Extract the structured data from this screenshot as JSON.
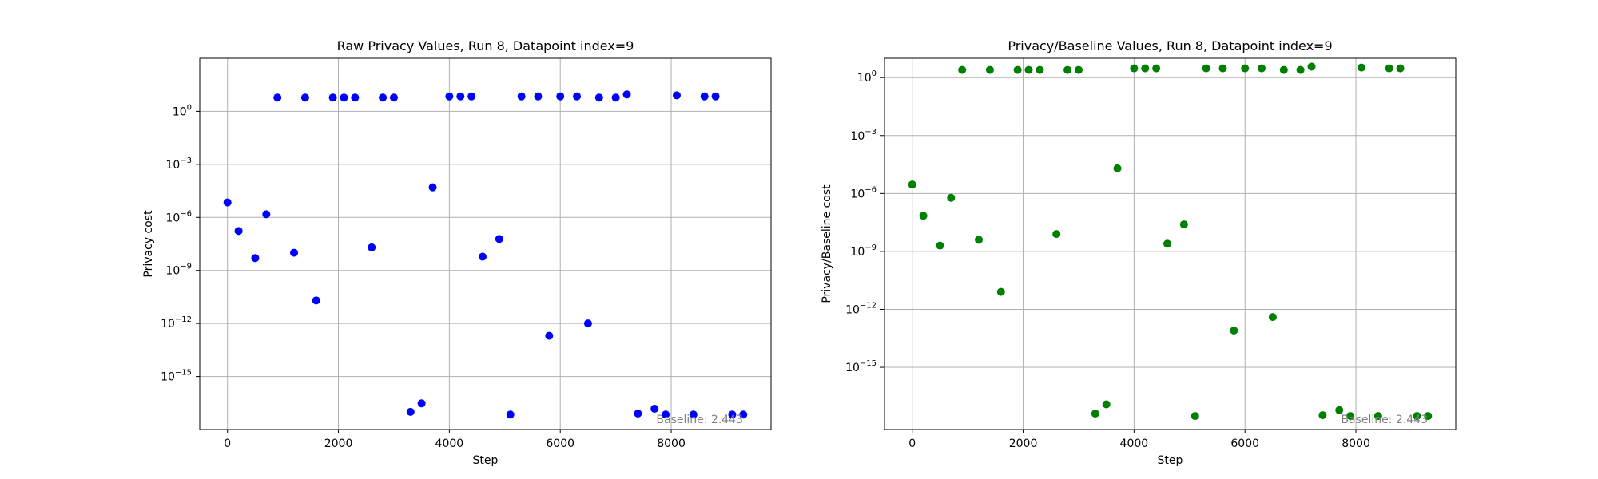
{
  "chart_data": [
    {
      "type": "scatter",
      "title": "Raw Privacy Values, Run 8, Datapoint index=9",
      "xlabel": "Step",
      "ylabel": "Privacy cost",
      "xlim": [
        -500,
        9800
      ],
      "ylim": [
        1e-18,
        1000
      ],
      "yscale": "log",
      "xticks": [
        0,
        2000,
        4000,
        6000,
        8000
      ],
      "xtick_labels": [
        "0",
        "2000",
        "4000",
        "6000",
        "8000"
      ],
      "yticks": [
        1e-15,
        1e-12,
        1e-09,
        1e-06,
        0.001,
        1
      ],
      "ytick_exponents": [
        "−15",
        "−12",
        "−9",
        "−6",
        "−3",
        "0"
      ],
      "ytick_base": "10",
      "grid": true,
      "color": "#0000ff",
      "annotation": "Baseline: 2.443",
      "x": [
        0,
        200,
        500,
        700,
        900,
        1200,
        1400,
        1600,
        1900,
        2100,
        2300,
        2600,
        2800,
        3000,
        3300,
        3500,
        3700,
        4000,
        4200,
        4400,
        4600,
        4900,
        5100,
        5300,
        5600,
        5800,
        6000,
        6300,
        6500,
        6700,
        7000,
        7200,
        7400,
        7700,
        7900,
        8100,
        8400,
        8600,
        8800,
        9100,
        9300
      ],
      "y": [
        7e-06,
        1.7e-07,
        5e-09,
        1.5e-06,
        6,
        1e-08,
        6,
        2e-11,
        6,
        6,
        6,
        2e-08,
        6,
        6,
        1e-17,
        3e-17,
        5e-05,
        7,
        7,
        7,
        6e-09,
        6e-08,
        7e-18,
        7,
        7,
        2e-13,
        7,
        7,
        1e-12,
        6,
        6,
        9,
        8e-18,
        1.5e-17,
        7e-18,
        8,
        7e-18,
        7,
        7,
        7e-18,
        7e-18
      ]
    },
    {
      "type": "scatter",
      "title": "Privacy/Baseline Values, Run 8, Datapoint index=9",
      "xlabel": "Step",
      "ylabel": "Privacy/Baseline cost",
      "xlim": [
        -500,
        9800
      ],
      "ylim": [
        6e-19,
        10
      ],
      "yscale": "log",
      "xticks": [
        0,
        2000,
        4000,
        6000,
        8000
      ],
      "xtick_labels": [
        "0",
        "2000",
        "4000",
        "6000",
        "8000"
      ],
      "yticks": [
        1e-15,
        1e-12,
        1e-09,
        1e-06,
        0.001,
        1
      ],
      "ytick_exponents": [
        "−15",
        "−12",
        "−9",
        "−6",
        "−3",
        "0"
      ],
      "ytick_base": "10",
      "grid": true,
      "color": "#008000",
      "annotation": "Baseline: 2.443",
      "x": [
        0,
        200,
        500,
        700,
        900,
        1200,
        1400,
        1600,
        1900,
        2100,
        2300,
        2600,
        2800,
        3000,
        3300,
        3500,
        3700,
        4000,
        4200,
        4400,
        4600,
        4900,
        5100,
        5300,
        5600,
        5800,
        6000,
        6300,
        6500,
        6700,
        7000,
        7200,
        7400,
        7700,
        7900,
        8100,
        8400,
        8600,
        8800,
        9100,
        9300
      ],
      "y": [
        2.9e-06,
        7e-08,
        2e-09,
        6e-07,
        2.5,
        4e-09,
        2.5,
        8e-12,
        2.5,
        2.5,
        2.5,
        8e-09,
        2.5,
        2.5,
        4e-18,
        1.2e-17,
        2e-05,
        3,
        3,
        3,
        2.5e-09,
        2.5e-08,
        3e-18,
        3,
        3,
        8e-14,
        3,
        3,
        4e-13,
        2.5,
        2.5,
        3.7,
        3.3e-18,
        6e-18,
        3e-18,
        3.3,
        3e-18,
        3,
        3,
        3e-18,
        3e-18
      ]
    }
  ]
}
